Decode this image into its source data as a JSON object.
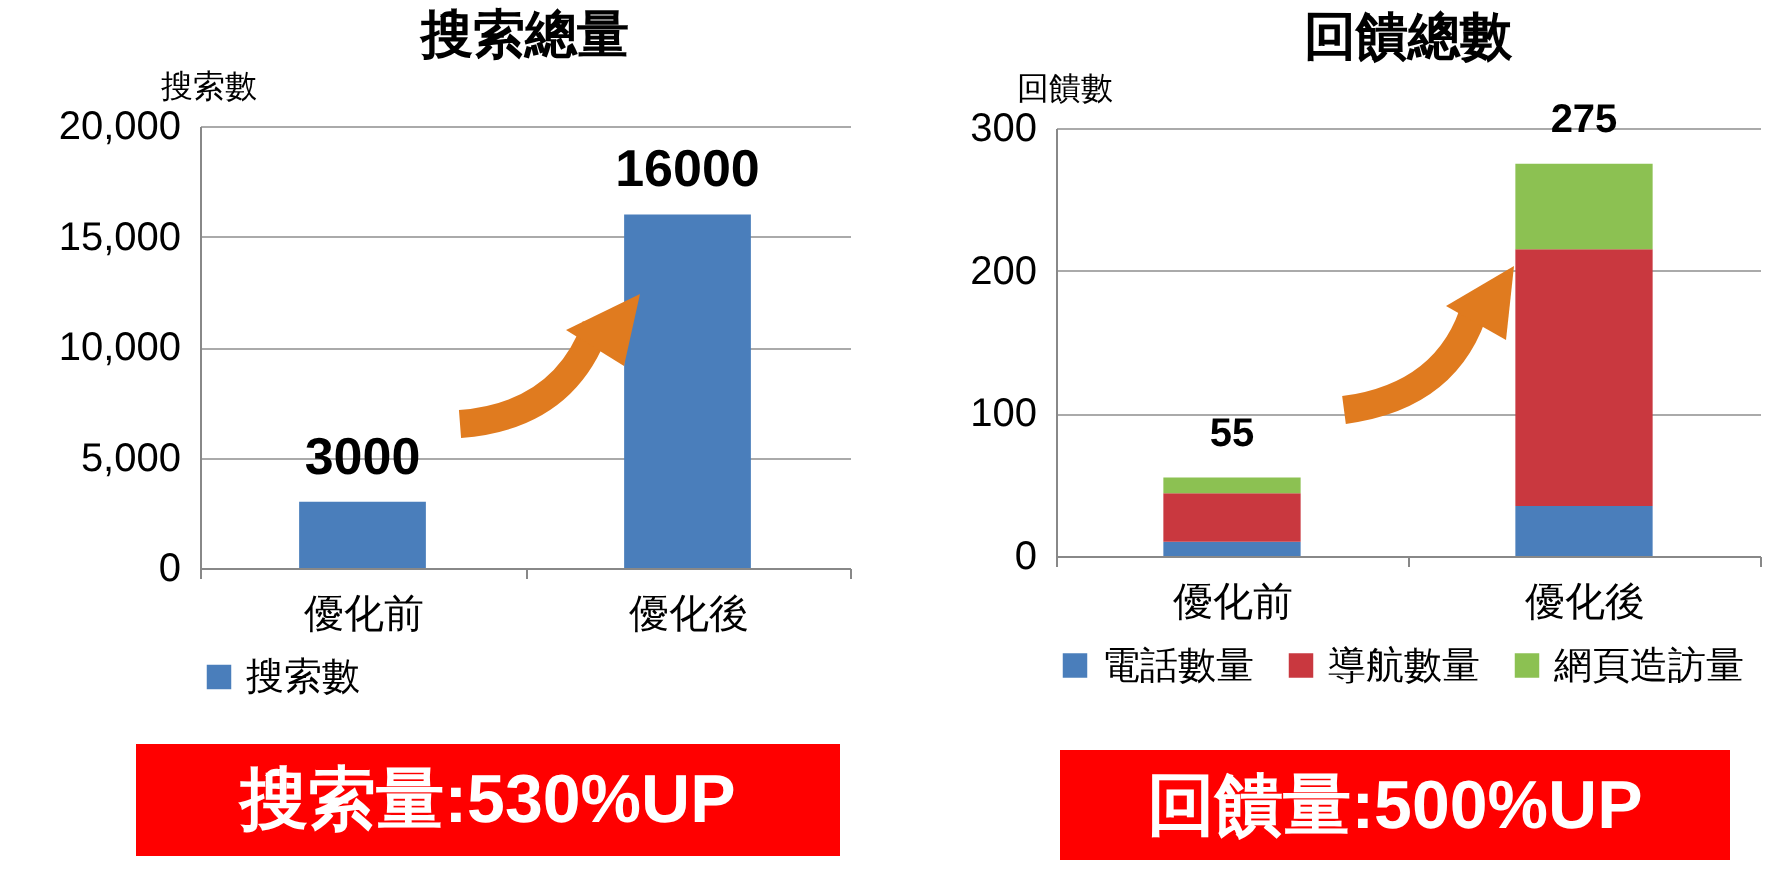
{
  "chart_data": [
    {
      "type": "bar",
      "title": "搜索總量",
      "ylabel": "搜索數",
      "categories": [
        "優化前",
        "優化後"
      ],
      "series": [
        {
          "name": "搜索數",
          "color": "#4a7ebb",
          "values": [
            3000,
            16000
          ]
        }
      ],
      "ylim": [
        0,
        20000
      ],
      "yticks": [
        {
          "value": 0,
          "label": "0"
        },
        {
          "value": 5000,
          "label": "5,000"
        },
        {
          "value": 10000,
          "label": "10,000"
        },
        {
          "value": 15000,
          "label": "15,000"
        },
        {
          "value": 20000,
          "label": "20,000"
        }
      ],
      "grid": "y",
      "legend": "bottom",
      "data_labels": true,
      "annotations": [
        "搜索量:530%UP"
      ]
    },
    {
      "type": "bar",
      "title": "回饋總數",
      "ylabel": "回饋數",
      "categories": [
        "優化前",
        "優化後"
      ],
      "stacked": true,
      "series": [
        {
          "name": "電話數量",
          "color": "#4a7ebb",
          "values": [
            10,
            35
          ]
        },
        {
          "name": "導航數量",
          "color": "#c9383f",
          "values": [
            34,
            180
          ]
        },
        {
          "name": "網頁造訪量",
          "color": "#8cc152",
          "values": [
            11,
            60
          ]
        }
      ],
      "totals": [
        "55",
        "275"
      ],
      "ylim": [
        0,
        300
      ],
      "yticks": [
        0,
        100,
        200,
        300
      ],
      "grid": "y",
      "legend": "bottom",
      "annotations": [
        "回饋量:500%UP"
      ]
    }
  ]
}
